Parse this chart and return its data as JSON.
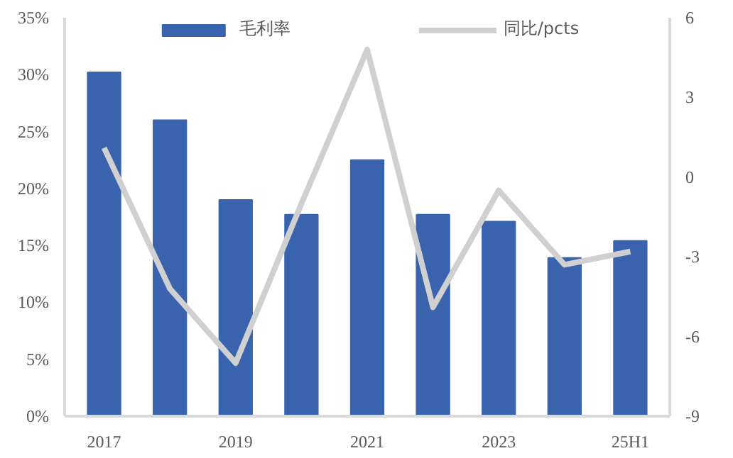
{
  "chart_data": {
    "type": "bar",
    "categories": [
      "2017",
      null,
      "2019",
      null,
      "2021",
      null,
      "2023",
      null,
      "25H1"
    ],
    "series": [
      {
        "name": "毛利率",
        "color": "#3a63ad",
        "values": [
          30.2,
          26.0,
          19.0,
          17.7,
          22.5,
          17.7,
          17.1,
          13.9,
          15.4
        ]
      },
      {
        "name": "同比/pcts",
        "type": "line",
        "axis": "y2",
        "color": "#d0d0d0",
        "values": [
          1.1,
          -4.2,
          -7.0,
          -1.0,
          4.8,
          -4.9,
          -0.5,
          -3.3,
          -2.8
        ]
      }
    ],
    "ylim": [
      0,
      35
    ],
    "yticks": [
      {
        "value": 0,
        "label": "0%"
      },
      {
        "value": 5,
        "label": "5%"
      },
      {
        "value": 10,
        "label": "10%"
      },
      {
        "value": 15,
        "label": "15%"
      },
      {
        "value": 20,
        "label": "20%"
      },
      {
        "value": 25,
        "label": "25%"
      },
      {
        "value": 30,
        "label": "30%"
      },
      {
        "value": 35,
        "label": "35%"
      }
    ],
    "y2lim": [
      -9,
      6
    ],
    "y2ticks": [
      -9,
      -6,
      -3,
      0,
      3,
      6
    ],
    "legend": "top",
    "grid": false
  }
}
